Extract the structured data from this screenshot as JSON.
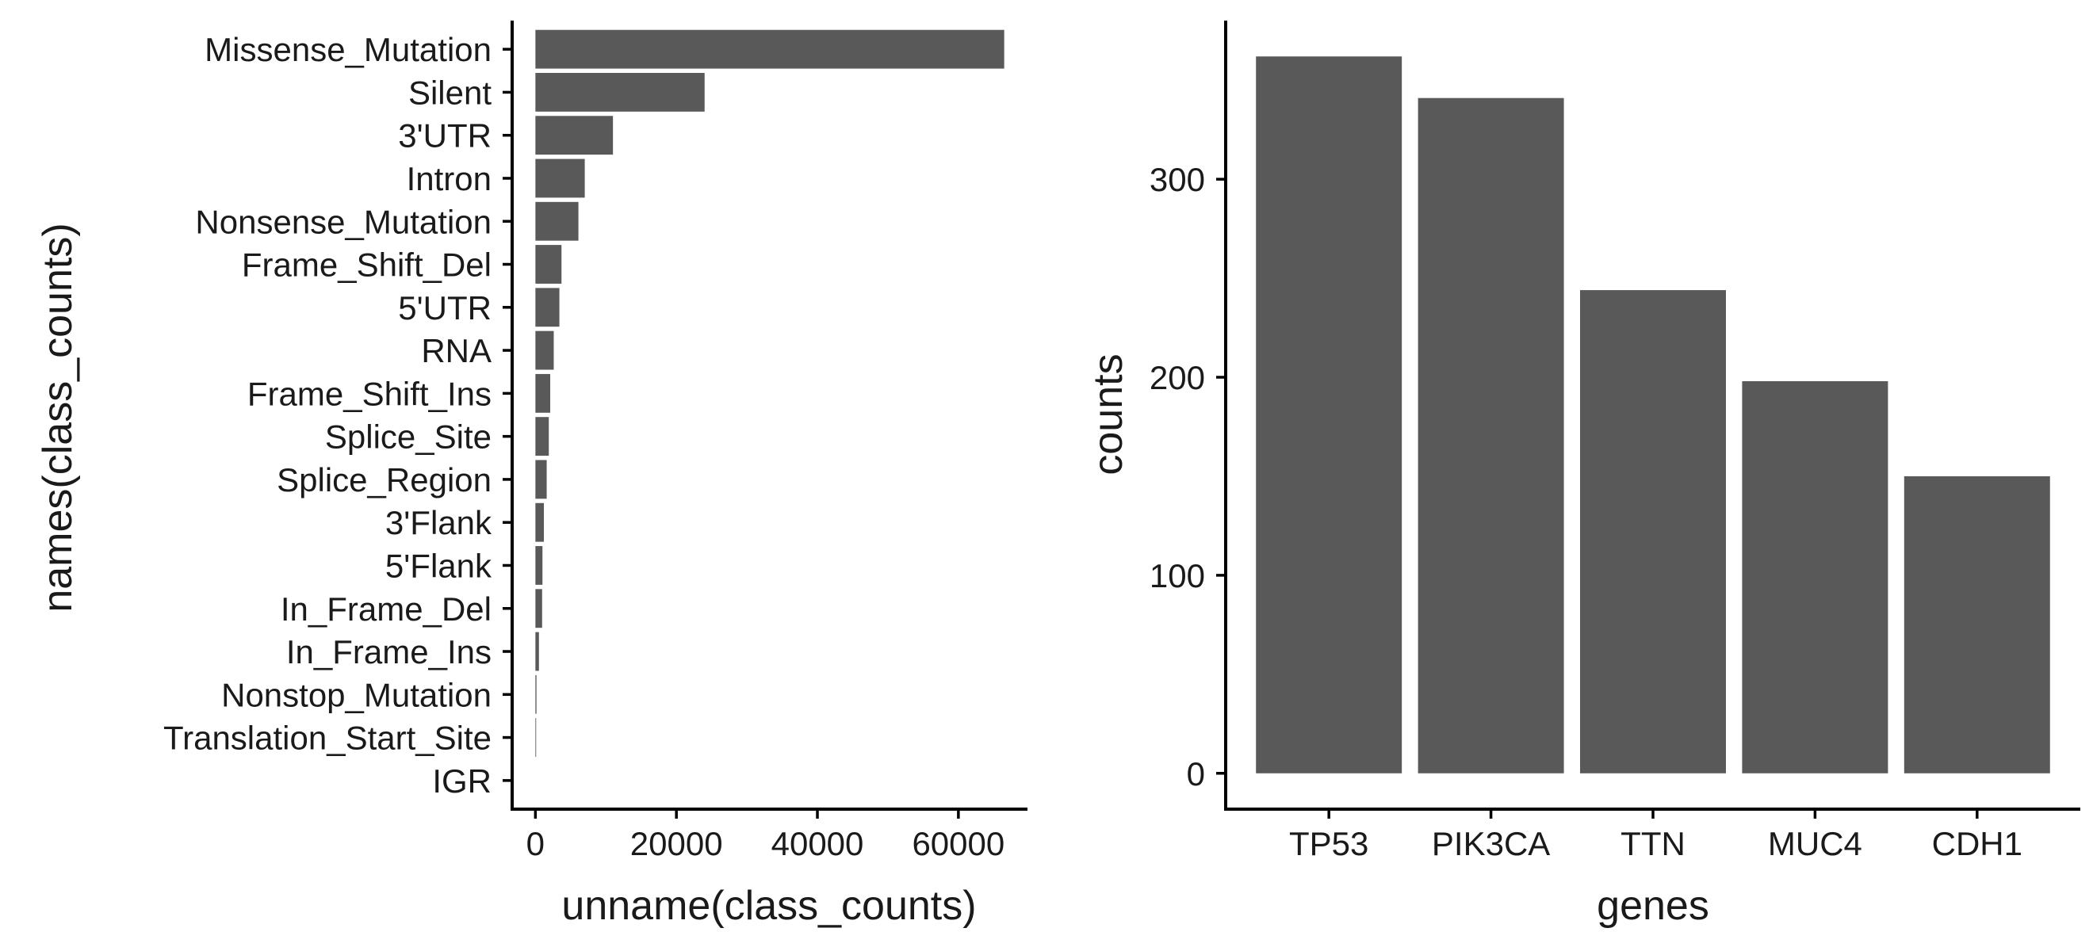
{
  "chart_data": [
    {
      "type": "bar",
      "orientation": "horizontal",
      "categories": [
        "Missense_Mutation",
        "Silent",
        "3'UTR",
        "Intron",
        "Nonsense_Mutation",
        "Frame_Shift_Del",
        "5'UTR",
        "RNA",
        "Frame_Shift_Ins",
        "Splice_Site",
        "Splice_Region",
        "3'Flank",
        "5'Flank",
        "In_Frame_Del",
        "In_Frame_Ins",
        "Nonstop_Mutation",
        "Translation_Start_Site",
        "IGR"
      ],
      "values": [
        66500,
        24000,
        11000,
        7000,
        6100,
        3700,
        3400,
        2600,
        2100,
        1900,
        1600,
        1200,
        1000,
        950,
        500,
        150,
        100,
        0
      ],
      "xlabel": "unname(class_counts)",
      "ylabel": "names(class_counts)",
      "ticks": [
        0,
        20000,
        40000,
        60000
      ],
      "tick_labels": [
        "0",
        "20000",
        "40000",
        "60000"
      ],
      "xlim": [
        -3300,
        69800
      ],
      "bar_color": "#595959",
      "grid": false
    },
    {
      "type": "bar",
      "orientation": "vertical",
      "categories": [
        "TP53",
        "PIK3CA",
        "TTN",
        "MUC4",
        "CDH1"
      ],
      "values": [
        362,
        341,
        244,
        198,
        150
      ],
      "xlabel": "genes",
      "ylabel": "counts",
      "ticks": [
        0,
        100,
        200,
        300
      ],
      "tick_labels": [
        "0",
        "100",
        "200",
        "300"
      ],
      "ylim": [
        -18.1,
        380.1
      ],
      "bar_color": "#595959",
      "grid": false
    }
  ]
}
